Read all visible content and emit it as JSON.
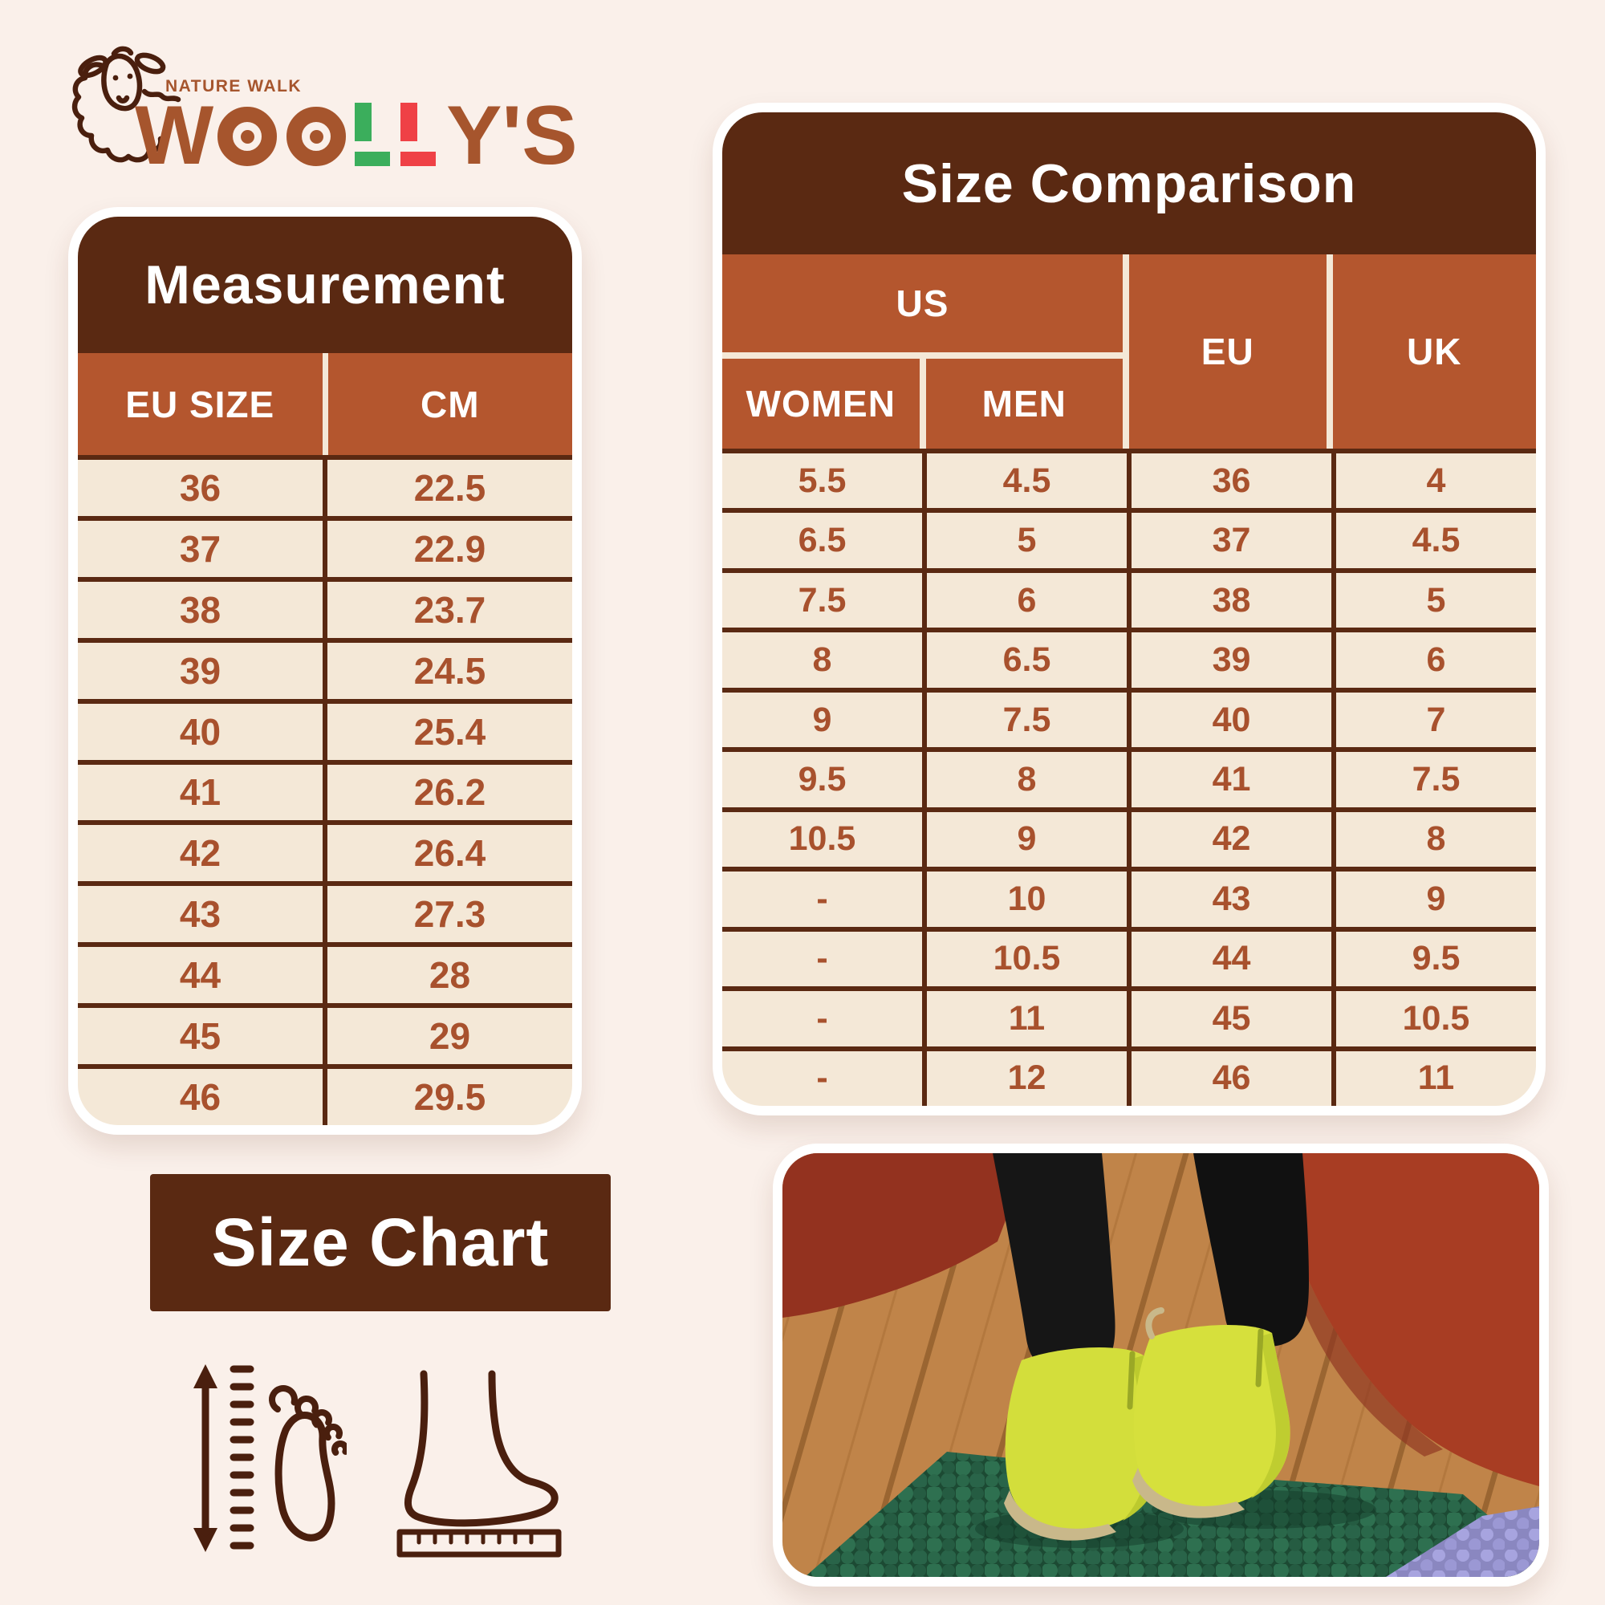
{
  "page": {
    "background": "#FAF0EA"
  },
  "colors": {
    "dark_brown": "#5A2912",
    "orange_header": "#B4562E",
    "cell_cream": "#F4E8D7",
    "cell_text": "#A8512D",
    "logo_brown": "#A6552D",
    "logo_green": "#3BAE5C",
    "logo_red": "#EF4146",
    "icon_outline": "#4A1F0E",
    "boot_yellow": "#D3DE3B",
    "mat_green": "#2E7050",
    "mat_lavender": "#A7A4DF"
  },
  "logo": {
    "brand": "WOOLLY'S",
    "tagline": "NATURE WALK",
    "letter_w": "W",
    "tail": "Y'S"
  },
  "size_chart": {
    "label": "Size Chart"
  },
  "chart_data": [
    {
      "type": "table",
      "title": "Measurement",
      "columns": [
        "EU SIZE",
        "CM"
      ],
      "rows": [
        [
          "36",
          "22.5"
        ],
        [
          "37",
          "22.9"
        ],
        [
          "38",
          "23.7"
        ],
        [
          "39",
          "24.5"
        ],
        [
          "40",
          "25.4"
        ],
        [
          "41",
          "26.2"
        ],
        [
          "42",
          "26.4"
        ],
        [
          "43",
          "27.3"
        ],
        [
          "44",
          "28"
        ],
        [
          "45",
          "29"
        ],
        [
          "46",
          "29.5"
        ]
      ]
    },
    {
      "type": "table",
      "title": "Size Comparison",
      "header": {
        "us": "US",
        "women": "WOMEN",
        "men": "MEN",
        "eu": "EU",
        "uk": "UK"
      },
      "columns": [
        "US WOMEN",
        "US MEN",
        "EU",
        "UK"
      ],
      "rows": [
        [
          "5.5",
          "4.5",
          "36",
          "4"
        ],
        [
          "6.5",
          "5",
          "37",
          "4.5"
        ],
        [
          "7.5",
          "6",
          "38",
          "5"
        ],
        [
          "8",
          "6.5",
          "39",
          "6"
        ],
        [
          "9",
          "7.5",
          "40",
          "7"
        ],
        [
          "9.5",
          "8",
          "41",
          "7.5"
        ],
        [
          "10.5",
          "9",
          "42",
          "8"
        ],
        [
          "-",
          "10",
          "43",
          "9"
        ],
        [
          "-",
          "10.5",
          "44",
          "9.5"
        ],
        [
          "-",
          "11",
          "45",
          "10.5"
        ],
        [
          "-",
          "12",
          "46",
          "11"
        ]
      ]
    }
  ],
  "icons": {
    "icon_1": "foot-length-measure-icon",
    "icon_2": "foot-profile-ruler-icon",
    "logo_icon": "sheep-icon"
  },
  "photo": {
    "name": "felt-boots-on-mat-photo"
  }
}
